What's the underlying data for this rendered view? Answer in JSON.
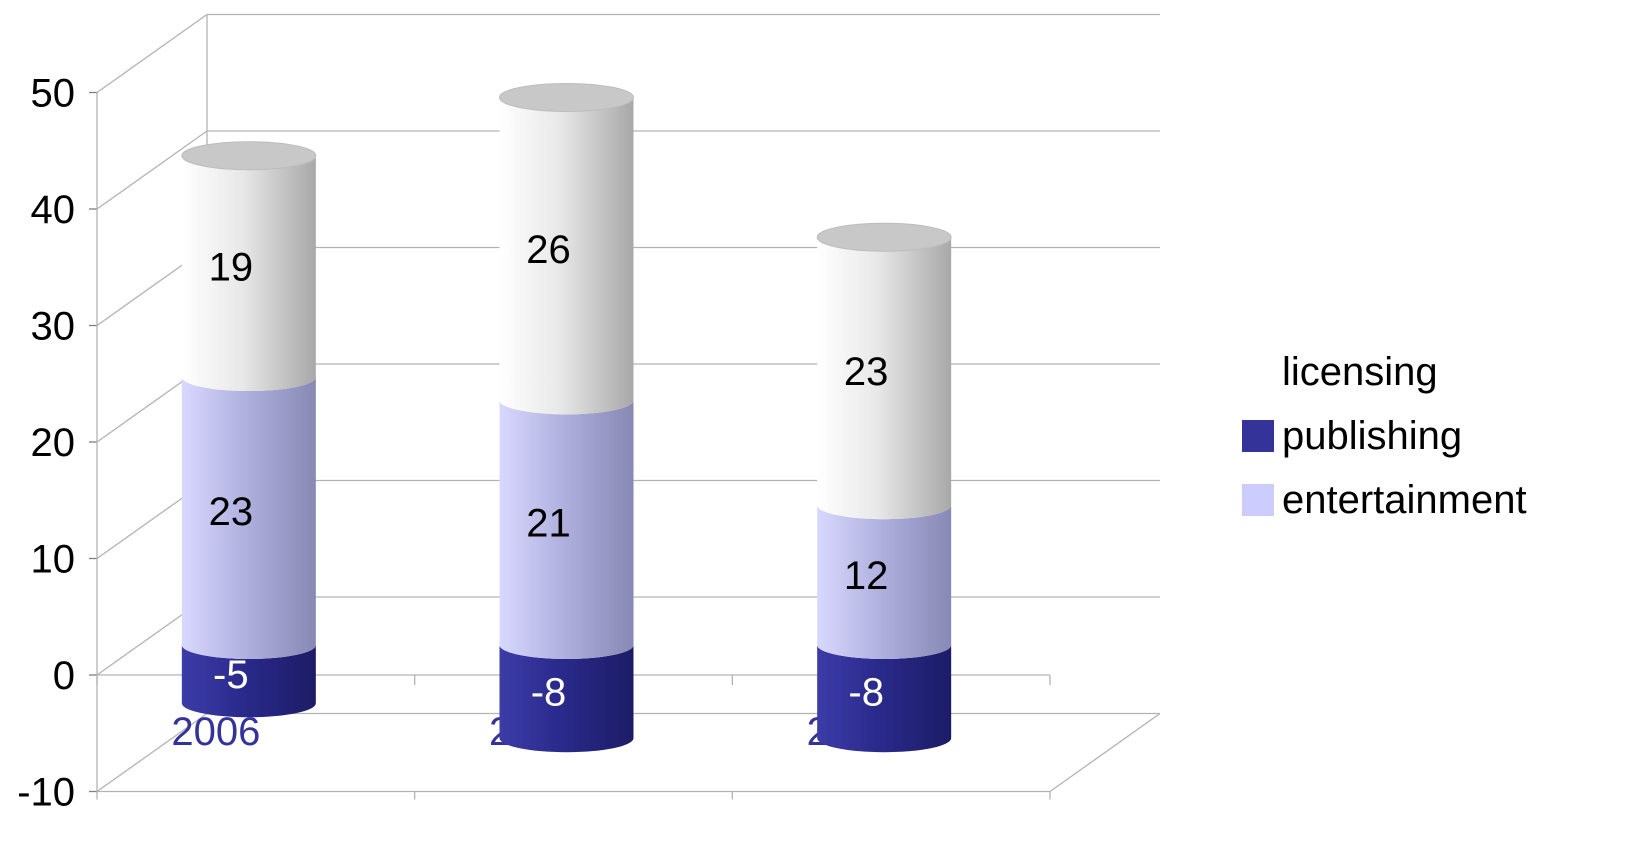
{
  "chart_data": {
    "type": "bar",
    "subtype": "stacked-3d-cylinder",
    "categories": [
      "2006",
      "2007",
      "2008"
    ],
    "series": [
      {
        "name": "publishing",
        "values": [
          -5,
          -8,
          -8
        ]
      },
      {
        "name": "entertainment",
        "values": [
          23,
          21,
          12
        ]
      },
      {
        "name": "licensing",
        "values": [
          19,
          26,
          23
        ]
      }
    ],
    "ylim": [
      -10,
      50
    ],
    "yticks": [
      "-10",
      "0",
      "10",
      "20",
      "30",
      "40",
      "50"
    ],
    "grid": true,
    "legend": "right",
    "legend_order": [
      "licensing",
      "publishing",
      "entertainment"
    ]
  },
  "colors": {
    "publishing": "#333399",
    "entertainment": "#ccccff",
    "licensing": "#ffffff",
    "axis_label": "#333399"
  }
}
